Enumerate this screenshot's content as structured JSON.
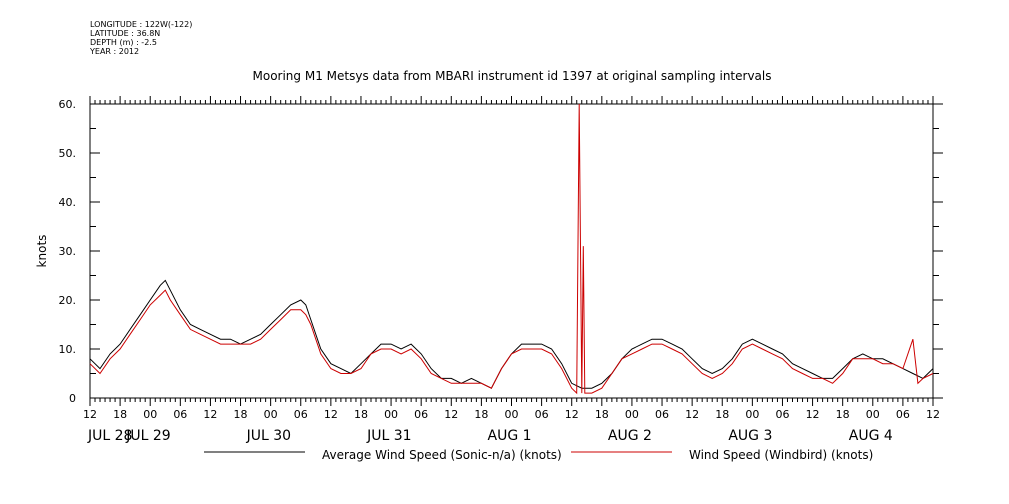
{
  "meta": {
    "longitude": "LONGITUDE : 122W(-122)",
    "latitude": "LATITUDE : 36.8N",
    "depth": "DEPTH (m) : -2.5",
    "year": "YEAR : 2012"
  },
  "chart_data": {
    "type": "line",
    "title": "Mooring M1 Metsys data from MBARI instrument id 1397 at original sampling intervals",
    "xlabel": "",
    "ylabel": "knots",
    "ylim": [
      0,
      60
    ],
    "yticks": [
      "0",
      "10.",
      "20.",
      "30.",
      "40.",
      "50.",
      "60."
    ],
    "xlim_hours": [
      12,
      180
    ],
    "xtick_hours": [
      "12",
      "18",
      "00",
      "06",
      "12",
      "18",
      "00",
      "06",
      "12",
      "18",
      "00",
      "06",
      "12",
      "18",
      "00",
      "06",
      "12",
      "18",
      "00",
      "06",
      "12",
      "18",
      "00",
      "06",
      "12",
      "18",
      "00",
      "06",
      "12"
    ],
    "date_labels": [
      "JUL 28",
      "JUL 29",
      "JUL 30",
      "JUL 31",
      "AUG  1",
      "AUG  2",
      "AUG  3",
      "AUG  4"
    ],
    "legend": {
      "placement": "bottom"
    },
    "x_unit": "hours since 2012-07-28 00:00",
    "series": [
      {
        "name": "Average Wind Speed (Sonic-n/a) (knots)",
        "color": "#000000",
        "points": [
          [
            12,
            8
          ],
          [
            14,
            6
          ],
          [
            16,
            9
          ],
          [
            18,
            11
          ],
          [
            20,
            14
          ],
          [
            22,
            17
          ],
          [
            24,
            20
          ],
          [
            26,
            23
          ],
          [
            27,
            24
          ],
          [
            28,
            22
          ],
          [
            30,
            18
          ],
          [
            32,
            15
          ],
          [
            34,
            14
          ],
          [
            36,
            13
          ],
          [
            38,
            12
          ],
          [
            40,
            12
          ],
          [
            42,
            11
          ],
          [
            44,
            12
          ],
          [
            46,
            13
          ],
          [
            48,
            15
          ],
          [
            50,
            17
          ],
          [
            52,
            19
          ],
          [
            54,
            20
          ],
          [
            55,
            19
          ],
          [
            56,
            16
          ],
          [
            58,
            10
          ],
          [
            60,
            7
          ],
          [
            62,
            6
          ],
          [
            64,
            5
          ],
          [
            66,
            7
          ],
          [
            68,
            9
          ],
          [
            70,
            11
          ],
          [
            72,
            11
          ],
          [
            74,
            10
          ],
          [
            76,
            11
          ],
          [
            78,
            9
          ],
          [
            80,
            6
          ],
          [
            82,
            4
          ],
          [
            84,
            4
          ],
          [
            86,
            3
          ],
          [
            88,
            4
          ],
          [
            90,
            3
          ],
          [
            92,
            2
          ],
          [
            94,
            6
          ],
          [
            96,
            9
          ],
          [
            98,
            11
          ],
          [
            100,
            11
          ],
          [
            102,
            11
          ],
          [
            104,
            10
          ],
          [
            106,
            7
          ],
          [
            108,
            3
          ],
          [
            110,
            2
          ],
          [
            112,
            2
          ],
          [
            114,
            3
          ],
          [
            116,
            5
          ],
          [
            118,
            8
          ],
          [
            120,
            10
          ],
          [
            122,
            11
          ],
          [
            124,
            12
          ],
          [
            126,
            12
          ],
          [
            128,
            11
          ],
          [
            130,
            10
          ],
          [
            132,
            8
          ],
          [
            134,
            6
          ],
          [
            136,
            5
          ],
          [
            138,
            6
          ],
          [
            140,
            8
          ],
          [
            142,
            11
          ],
          [
            144,
            12
          ],
          [
            146,
            11
          ],
          [
            148,
            10
          ],
          [
            150,
            9
          ],
          [
            152,
            7
          ],
          [
            154,
            6
          ],
          [
            156,
            5
          ],
          [
            158,
            4
          ],
          [
            160,
            4
          ],
          [
            162,
            6
          ],
          [
            164,
            8
          ],
          [
            166,
            9
          ],
          [
            168,
            8
          ],
          [
            170,
            8
          ],
          [
            172,
            7
          ],
          [
            174,
            6
          ],
          [
            176,
            5
          ],
          [
            178,
            4
          ],
          [
            180,
            6
          ]
        ]
      },
      {
        "name": "Wind Speed (Windbird) (knots)",
        "color": "#cc0000",
        "points": [
          [
            12,
            7
          ],
          [
            14,
            5
          ],
          [
            16,
            8
          ],
          [
            18,
            10
          ],
          [
            20,
            13
          ],
          [
            22,
            16
          ],
          [
            24,
            19
          ],
          [
            26,
            21
          ],
          [
            27,
            22
          ],
          [
            28,
            20
          ],
          [
            30,
            17
          ],
          [
            32,
            14
          ],
          [
            34,
            13
          ],
          [
            36,
            12
          ],
          [
            38,
            11
          ],
          [
            40,
            11
          ],
          [
            42,
            11
          ],
          [
            44,
            11
          ],
          [
            46,
            12
          ],
          [
            48,
            14
          ],
          [
            50,
            16
          ],
          [
            52,
            18
          ],
          [
            54,
            18
          ],
          [
            55,
            17
          ],
          [
            56,
            15
          ],
          [
            58,
            9
          ],
          [
            60,
            6
          ],
          [
            62,
            5
          ],
          [
            64,
            5
          ],
          [
            66,
            6
          ],
          [
            68,
            9
          ],
          [
            70,
            10
          ],
          [
            72,
            10
          ],
          [
            74,
            9
          ],
          [
            76,
            10
          ],
          [
            78,
            8
          ],
          [
            80,
            5
          ],
          [
            82,
            4
          ],
          [
            84,
            3
          ],
          [
            86,
            3
          ],
          [
            88,
            3
          ],
          [
            90,
            3
          ],
          [
            92,
            2
          ],
          [
            94,
            6
          ],
          [
            96,
            9
          ],
          [
            98,
            10
          ],
          [
            100,
            10
          ],
          [
            102,
            10
          ],
          [
            104,
            9
          ],
          [
            106,
            6
          ],
          [
            108,
            2
          ],
          [
            109,
            1
          ],
          [
            109.5,
            60
          ],
          [
            110,
            1
          ],
          [
            110.3,
            31
          ],
          [
            110.6,
            1
          ],
          [
            112,
            1
          ],
          [
            114,
            2
          ],
          [
            116,
            5
          ],
          [
            118,
            8
          ],
          [
            120,
            9
          ],
          [
            122,
            10
          ],
          [
            124,
            11
          ],
          [
            126,
            11
          ],
          [
            128,
            10
          ],
          [
            130,
            9
          ],
          [
            132,
            7
          ],
          [
            134,
            5
          ],
          [
            136,
            4
          ],
          [
            138,
            5
          ],
          [
            140,
            7
          ],
          [
            142,
            10
          ],
          [
            144,
            11
          ],
          [
            146,
            10
          ],
          [
            148,
            9
          ],
          [
            150,
            8
          ],
          [
            152,
            6
          ],
          [
            154,
            5
          ],
          [
            156,
            4
          ],
          [
            158,
            4
          ],
          [
            160,
            3
          ],
          [
            162,
            5
          ],
          [
            164,
            8
          ],
          [
            166,
            8
          ],
          [
            168,
            8
          ],
          [
            170,
            7
          ],
          [
            172,
            7
          ],
          [
            174,
            6
          ],
          [
            176,
            12
          ],
          [
            177,
            3
          ],
          [
            178,
            4
          ],
          [
            180,
            5
          ]
        ]
      }
    ]
  }
}
